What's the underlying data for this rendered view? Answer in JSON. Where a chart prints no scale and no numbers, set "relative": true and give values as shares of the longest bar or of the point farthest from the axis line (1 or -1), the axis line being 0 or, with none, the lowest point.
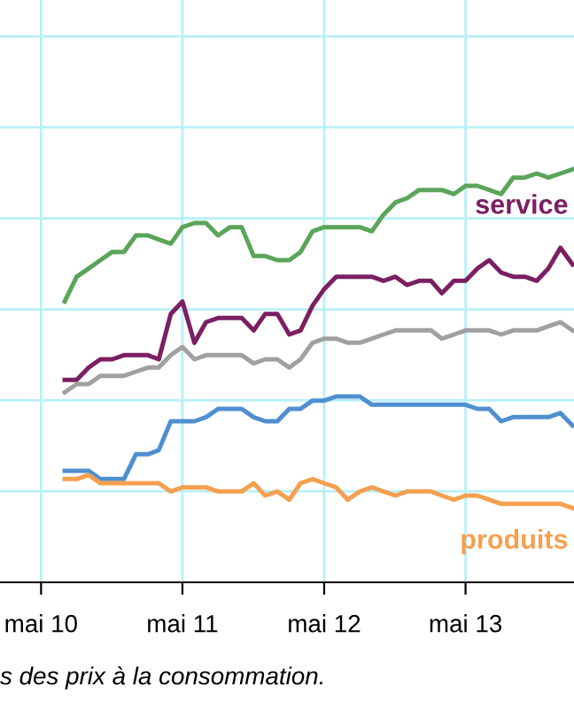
{
  "chart_data": {
    "type": "line",
    "relative": true,
    "x": [
      "2010-07",
      "2010-08",
      "2010-09",
      "2010-10",
      "2010-11",
      "2010-12",
      "2011-01",
      "2011-02",
      "2011-03",
      "2011-04",
      "2011-05",
      "2011-06",
      "2011-07",
      "2011-08",
      "2011-09",
      "2011-10",
      "2011-11",
      "2011-12",
      "2012-01",
      "2012-02",
      "2012-03",
      "2012-04",
      "2012-05",
      "2012-06",
      "2012-07",
      "2012-08",
      "2012-09",
      "2012-10",
      "2012-11",
      "2012-12",
      "2013-01",
      "2013-02",
      "2013-03",
      "2013-04",
      "2013-05",
      "2013-06",
      "2013-07",
      "2013-08",
      "2013-09",
      "2013-10",
      "2013-11",
      "2013-12",
      "2014-01",
      "2014-02"
    ],
    "xlim": [
      "2010-01-15",
      "2014-02-05"
    ],
    "xticks": [
      {
        "value": "2010-05",
        "label": "mai 10"
      },
      {
        "value": "2011-05",
        "label": "mai 11"
      },
      {
        "value": "2012-05",
        "label": "mai 12"
      },
      {
        "value": "2013-05",
        "label": "mai 13"
      }
    ],
    "grid": true,
    "marker": "none",
    "line_style": "solid",
    "series": [
      {
        "color": "#5aa55a",
        "values": [
          0.68,
          0.74,
          0.76,
          0.78,
          0.8,
          0.8,
          0.84,
          0.84,
          0.83,
          0.82,
          0.86,
          0.87,
          0.87,
          0.84,
          0.86,
          0.86,
          0.79,
          0.79,
          0.78,
          0.78,
          0.8,
          0.85,
          0.86,
          0.86,
          0.86,
          0.86,
          0.85,
          0.89,
          0.92,
          0.93,
          0.95,
          0.95,
          0.95,
          0.94,
          0.96,
          0.96,
          0.95,
          0.94,
          0.98,
          0.98,
          0.99,
          0.98,
          0.99,
          1.0
        ]
      },
      {
        "color": "#7b1f63",
        "values": [
          0.49,
          0.49,
          0.52,
          0.54,
          0.54,
          0.55,
          0.55,
          0.55,
          0.54,
          0.65,
          0.68,
          0.58,
          0.63,
          0.64,
          0.64,
          0.64,
          0.61,
          0.65,
          0.65,
          0.6,
          0.61,
          0.67,
          0.71,
          0.74,
          0.74,
          0.74,
          0.74,
          0.73,
          0.74,
          0.72,
          0.73,
          0.73,
          0.7,
          0.73,
          0.73,
          0.76,
          0.78,
          0.75,
          0.74,
          0.74,
          0.73,
          0.76,
          0.81,
          0.77
        ]
      },
      {
        "color": "#a0a0a0",
        "values": [
          0.46,
          0.48,
          0.48,
          0.5,
          0.5,
          0.5,
          0.51,
          0.52,
          0.52,
          0.55,
          0.57,
          0.54,
          0.55,
          0.55,
          0.55,
          0.55,
          0.53,
          0.54,
          0.54,
          0.52,
          0.54,
          0.58,
          0.59,
          0.59,
          0.58,
          0.58,
          0.59,
          0.6,
          0.61,
          0.61,
          0.61,
          0.61,
          0.59,
          0.6,
          0.61,
          0.61,
          0.61,
          0.6,
          0.61,
          0.61,
          0.61,
          0.62,
          0.63,
          0.61
        ]
      },
      {
        "color": "#4f8fd0",
        "values": [
          0.27,
          0.27,
          0.27,
          0.25,
          0.25,
          0.25,
          0.31,
          0.31,
          0.32,
          0.39,
          0.39,
          0.39,
          0.4,
          0.42,
          0.42,
          0.42,
          0.4,
          0.39,
          0.39,
          0.42,
          0.42,
          0.44,
          0.44,
          0.45,
          0.45,
          0.45,
          0.43,
          0.43,
          0.43,
          0.43,
          0.43,
          0.43,
          0.43,
          0.43,
          0.43,
          0.42,
          0.42,
          0.39,
          0.4,
          0.4,
          0.4,
          0.4,
          0.41,
          0.38
        ]
      },
      {
        "color": "#f4a050",
        "values": [
          0.25,
          0.25,
          0.26,
          0.24,
          0.24,
          0.24,
          0.24,
          0.24,
          0.24,
          0.22,
          0.23,
          0.23,
          0.23,
          0.22,
          0.22,
          0.22,
          0.24,
          0.21,
          0.22,
          0.2,
          0.24,
          0.25,
          0.24,
          0.23,
          0.2,
          0.22,
          0.23,
          0.22,
          0.21,
          0.22,
          0.22,
          0.22,
          0.21,
          0.2,
          0.21,
          0.21,
          0.2,
          0.19,
          0.19,
          0.19,
          0.19,
          0.19,
          0.19,
          0.18
        ]
      }
    ],
    "annotations": [
      "service",
      "produits",
      "s des prix à la consommation."
    ]
  }
}
